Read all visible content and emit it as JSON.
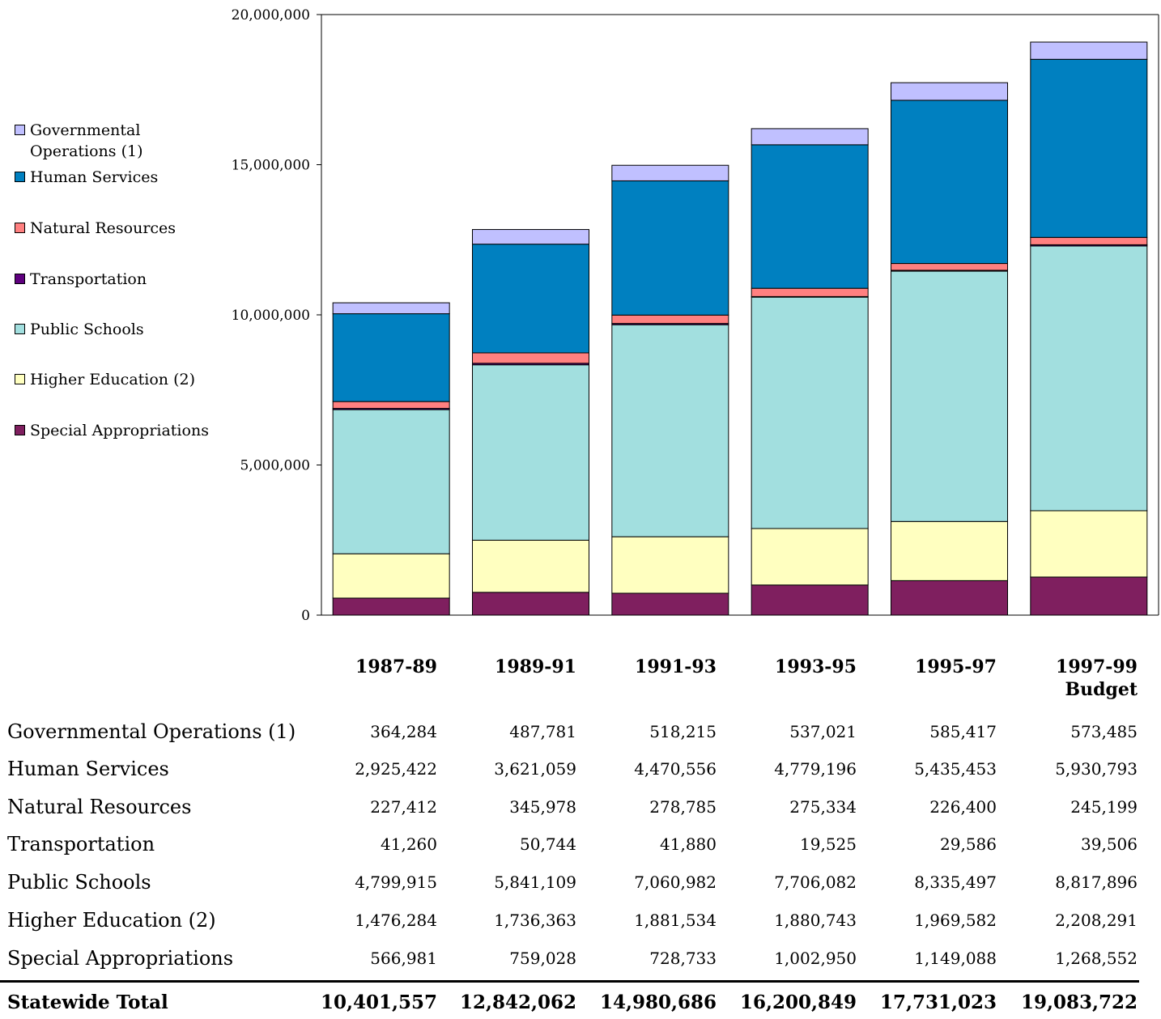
{
  "chart_data": {
    "type": "bar",
    "stacked": true,
    "categories": [
      "1987-89",
      "1989-91",
      "1991-93",
      "1993-95",
      "1995-97",
      "1997-99\nBudget"
    ],
    "ylim": [
      0,
      20000000
    ],
    "yticks": [
      "0",
      "5,000,000",
      "10,000,000",
      "15,000,000",
      "20,000,000"
    ],
    "ytick_values": [
      0,
      5000000,
      10000000,
      15000000,
      20000000
    ],
    "legend_position": "left",
    "series": [
      {
        "name": "Special Appropriations",
        "color": "#7f1f5f",
        "values": [
          566981,
          759028,
          728733,
          1002950,
          1149088,
          1268552
        ]
      },
      {
        "name": "Higher Education  (2)",
        "color": "#ffffc0",
        "values": [
          1476284,
          1736363,
          1881534,
          1880743,
          1969582,
          2208291
        ]
      },
      {
        "name": "Public Schools",
        "color": "#a2dfdf",
        "values": [
          4799915,
          5841109,
          7060982,
          7706082,
          8335497,
          8817896
        ]
      },
      {
        "name": "Transportation",
        "color": "#5f007f",
        "values": [
          41260,
          50744,
          41880,
          19525,
          29586,
          39506
        ]
      },
      {
        "name": "Natural Resources",
        "color": "#ff8080",
        "values": [
          227412,
          345978,
          278785,
          275334,
          226400,
          245199
        ]
      },
      {
        "name": "Human Services",
        "color": "#0080c0",
        "values": [
          2925422,
          3621059,
          4470556,
          4779196,
          5435453,
          5930793
        ]
      },
      {
        "name": "Governmental Operations  (1)",
        "color": "#c0c0ff",
        "values": [
          364284,
          487781,
          518215,
          537021,
          585417,
          573485
        ]
      }
    ],
    "legend": [
      {
        "label": "Governmental\nOperations  (1)",
        "color": "#c0c0ff"
      },
      {
        "label": "Human Services",
        "color": "#0080c0"
      },
      {
        "label": "Natural Resources",
        "color": "#ff8080"
      },
      {
        "label": "Transportation",
        "color": "#5f007f"
      },
      {
        "label": "Public Schools",
        "color": "#a2dfdf"
      },
      {
        "label": "Higher Education  (2)",
        "color": "#ffffc0"
      },
      {
        "label": "Special Appropriations",
        "color": "#7f1f5f"
      }
    ]
  },
  "table": {
    "rows": [
      {
        "label": "Governmental Operations  (1)",
        "values": [
          "364,284",
          "487,781",
          "518,215",
          "537,021",
          "585,417",
          "573,485"
        ]
      },
      {
        "label": "Human Services",
        "values": [
          "2,925,422",
          "3,621,059",
          "4,470,556",
          "4,779,196",
          "5,435,453",
          "5,930,793"
        ]
      },
      {
        "label": "Natural Resources",
        "values": [
          "227,412",
          "345,978",
          "278,785",
          "275,334",
          "226,400",
          "245,199"
        ]
      },
      {
        "label": "Transportation",
        "values": [
          "41,260",
          "50,744",
          "41,880",
          "19,525",
          "29,586",
          "39,506"
        ]
      },
      {
        "label": "Public Schools",
        "values": [
          "4,799,915",
          "5,841,109",
          "7,060,982",
          "7,706,082",
          "8,335,497",
          "8,817,896"
        ]
      },
      {
        "label": "Higher Education  (2)",
        "values": [
          "1,476,284",
          "1,736,363",
          "1,881,534",
          "1,880,743",
          "1,969,582",
          "2,208,291"
        ]
      },
      {
        "label": "Special Appropriations",
        "values": [
          "566,981",
          "759,028",
          "728,733",
          "1,002,950",
          "1,149,088",
          "1,268,552"
        ]
      }
    ],
    "total": {
      "label": "Statewide Total",
      "values": [
        "10,401,557",
        "12,842,062",
        "14,980,686",
        "16,200,849",
        "17,731,023",
        "19,083,722"
      ]
    }
  }
}
